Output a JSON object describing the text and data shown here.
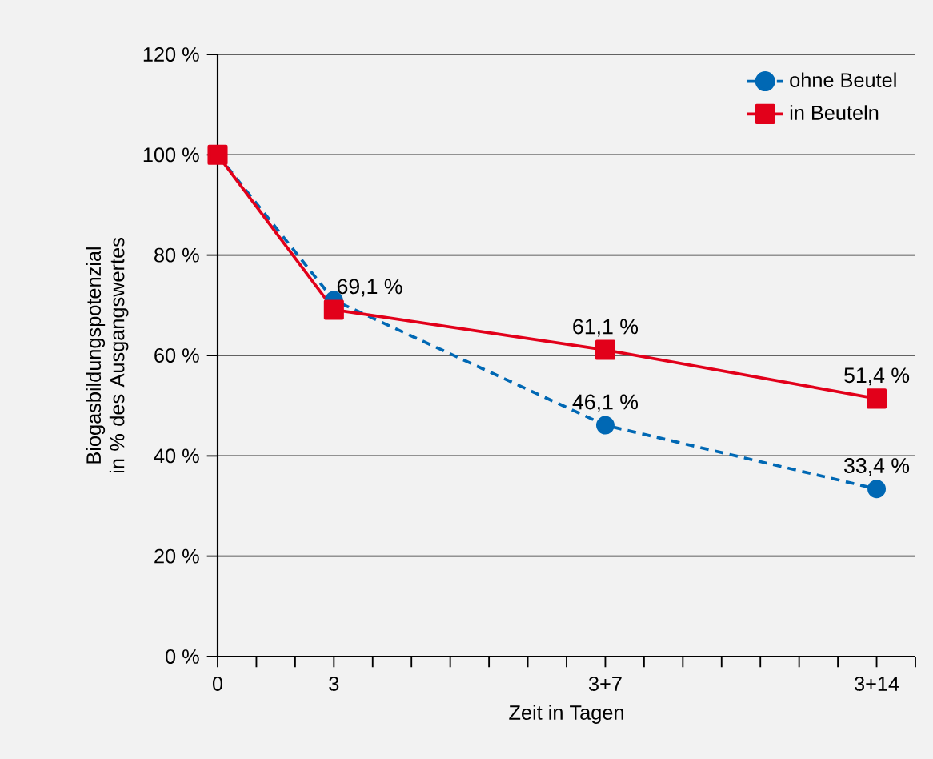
{
  "chart_data": {
    "type": "line",
    "xlabel": "Zeit in Tagen",
    "ylabel": "Biogasbildungspotenzial in % des Ausgangswertes",
    "xlim": [
      0,
      18
    ],
    "xticks": [
      0,
      {
        "value": 1,
        "label": null
      },
      {
        "value": 2,
        "label": null
      },
      3,
      {
        "value": 4,
        "label": null
      },
      {
        "value": 5,
        "label": null
      },
      {
        "value": 6,
        "label": null
      },
      {
        "value": 7,
        "label": null
      },
      {
        "value": 8,
        "label": null
      },
      {
        "value": 9,
        "label": null
      },
      {
        "value": 10,
        "label": "3+7"
      },
      {
        "value": 11,
        "label": null
      },
      {
        "value": 12,
        "label": null
      },
      {
        "value": 13,
        "label": null
      },
      {
        "value": 14,
        "label": null
      },
      {
        "value": 15,
        "label": null
      },
      {
        "value": 16,
        "label": null
      },
      {
        "value": 17,
        "label": "3+14"
      },
      {
        "value": 18,
        "label": null
      }
    ],
    "ylim": [
      0,
      120
    ],
    "yticks": [
      {
        "value": 0,
        "label": "0 %"
      },
      {
        "value": 20,
        "label": "20 %"
      },
      {
        "value": 40,
        "label": "40 %"
      },
      {
        "value": 60,
        "label": "60 %"
      },
      {
        "value": 80,
        "label": "80 %"
      },
      {
        "value": 100,
        "label": "100 %"
      },
      {
        "value": 120,
        "label": "120 %"
      }
    ],
    "grid": "y",
    "legend": "top right",
    "x": [
      0,
      3,
      10,
      17
    ],
    "series": [
      {
        "name": "ohne Beutel",
        "color": "#0068b4",
        "marker": "circle",
        "line_style": "dashed",
        "values": [
          100,
          71,
          46.1,
          33.4
        ],
        "value_labels": [
          null,
          null,
          "46,1 %",
          "33,4 %"
        ]
      },
      {
        "name": "in Beuteln",
        "color": "#e2001a",
        "marker": "square",
        "line_style": "solid",
        "values": [
          100,
          69.1,
          61.1,
          51.4
        ],
        "value_labels": [
          null,
          "69,1 %",
          "61,1 %",
          "51,4 %"
        ]
      }
    ]
  }
}
